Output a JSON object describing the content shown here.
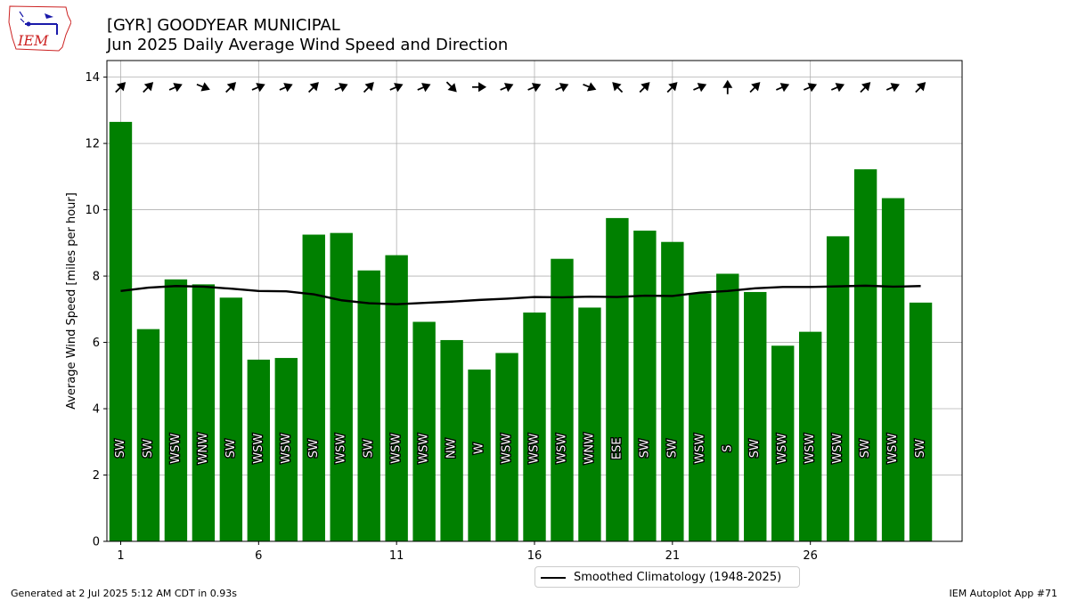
{
  "header": {
    "title_line1": "[GYR] GOODYEAR MUNICIPAL",
    "title_line2": "Jun 2025 Daily Average Wind Speed and Direction"
  },
  "logo": {
    "text": "IEM"
  },
  "footer": {
    "generated": "Generated at 2 Jul 2025 5:12 AM CDT in 0.93s",
    "app": "IEM Autoplot App #71"
  },
  "colors": {
    "bar": "#008000",
    "climo": "#000000",
    "grid": "#b0b0b0",
    "logo_red": "#cc2222",
    "logo_blue": "#1a1aaa"
  },
  "chart_data": {
    "type": "bar",
    "title": "[GYR] GOODYEAR MUNICIPAL\nJun 2025 Daily Average Wind Speed and Direction",
    "ylabel": "Average Wind Speed [miles per hour]",
    "xlabel": "",
    "xlim": [
      0.5,
      31.5
    ],
    "ylim": [
      0,
      14.5
    ],
    "xticks": [
      1,
      6,
      11,
      16,
      21,
      26
    ],
    "yticks": [
      0,
      2,
      4,
      6,
      8,
      10,
      12,
      14
    ],
    "grid": true,
    "legend_position": "bottom-center",
    "days": [
      1,
      2,
      3,
      4,
      5,
      6,
      7,
      8,
      9,
      10,
      11,
      12,
      13,
      14,
      15,
      16,
      17,
      18,
      19,
      20,
      21,
      22,
      23,
      24,
      25,
      26,
      27,
      28,
      29,
      30
    ],
    "series": [
      {
        "type": "bar",
        "values": [
          12.65,
          6.4,
          7.9,
          7.75,
          7.35,
          5.48,
          5.53,
          9.25,
          9.3,
          8.17,
          8.63,
          6.62,
          6.07,
          5.18,
          5.68,
          6.9,
          8.52,
          7.05,
          9.75,
          9.37,
          9.03,
          7.48,
          8.07,
          7.52,
          5.9,
          6.32,
          9.2,
          11.22,
          10.35,
          7.2
        ],
        "direction_labels": [
          "SW",
          "SW",
          "WSW",
          "WNW",
          "SW",
          "WSW",
          "WSW",
          "SW",
          "WSW",
          "SW",
          "WSW",
          "WSW",
          "NW",
          "W",
          "WSW",
          "WSW",
          "WSW",
          "WNW",
          "ESE",
          "SW",
          "SW",
          "WSW",
          "S",
          "SW",
          "WSW",
          "WSW",
          "WSW",
          "SW",
          "WSW",
          "SW"
        ],
        "arrow_headings_deg": [
          45,
          45,
          67,
          112,
          45,
          67,
          67,
          45,
          67,
          45,
          67,
          67,
          135,
          90,
          67,
          67,
          67,
          112,
          315,
          45,
          45,
          67,
          0,
          45,
          67,
          67,
          67,
          45,
          67,
          45
        ]
      },
      {
        "name": "Smoothed Climatology (1948-2025)",
        "type": "line",
        "values": [
          7.55,
          7.65,
          7.7,
          7.68,
          7.62,
          7.55,
          7.54,
          7.45,
          7.27,
          7.18,
          7.15,
          7.19,
          7.23,
          7.28,
          7.32,
          7.37,
          7.36,
          7.38,
          7.37,
          7.41,
          7.4,
          7.5,
          7.55,
          7.63,
          7.67,
          7.67,
          7.69,
          7.71,
          7.68,
          7.7
        ]
      }
    ]
  }
}
